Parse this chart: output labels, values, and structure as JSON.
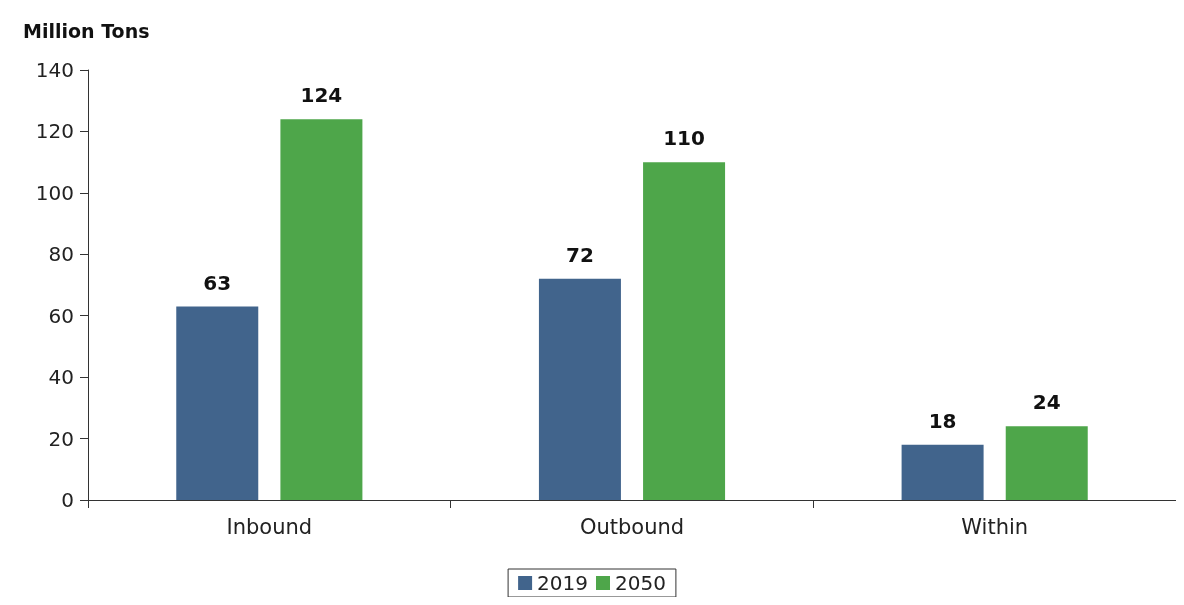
{
  "chart_data": {
    "type": "bar",
    "ylabel": "Million Tons",
    "categories": [
      "Inbound",
      "Outbound",
      "Within"
    ],
    "series": [
      {
        "name": "2019",
        "color": "#41648c",
        "values": [
          63,
          72,
          18
        ]
      },
      {
        "name": "2050",
        "color": "#4ea64a",
        "values": [
          124,
          110,
          24
        ]
      }
    ],
    "ylim": [
      0,
      140
    ],
    "yticks": [
      0,
      20,
      40,
      60,
      80,
      100,
      120,
      140
    ],
    "grid": false,
    "legend": "bottom",
    "data_labels": true
  }
}
